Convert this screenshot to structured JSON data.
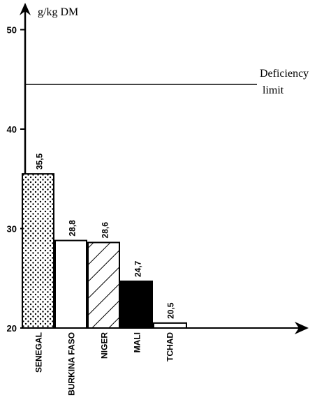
{
  "chart_data": {
    "type": "bar",
    "ylabel": "g/kg DM",
    "ylim": [
      20,
      52
    ],
    "yticks": [
      20,
      30,
      40,
      50
    ],
    "categories": [
      "SENEGAL",
      "BURKINA FASO",
      "NIGER",
      "MALI",
      "TCHAD"
    ],
    "values": [
      35.5,
      28.8,
      28.6,
      24.7,
      20.5
    ],
    "value_labels": [
      "35,5",
      "28,8",
      "28,6",
      "24,7",
      "20,5"
    ],
    "fills": [
      "dots",
      "white",
      "hatch",
      "black",
      "white"
    ],
    "reference_line": {
      "value": 44.5,
      "label_line1": "Deficiency",
      "label_line2": "limit"
    }
  }
}
